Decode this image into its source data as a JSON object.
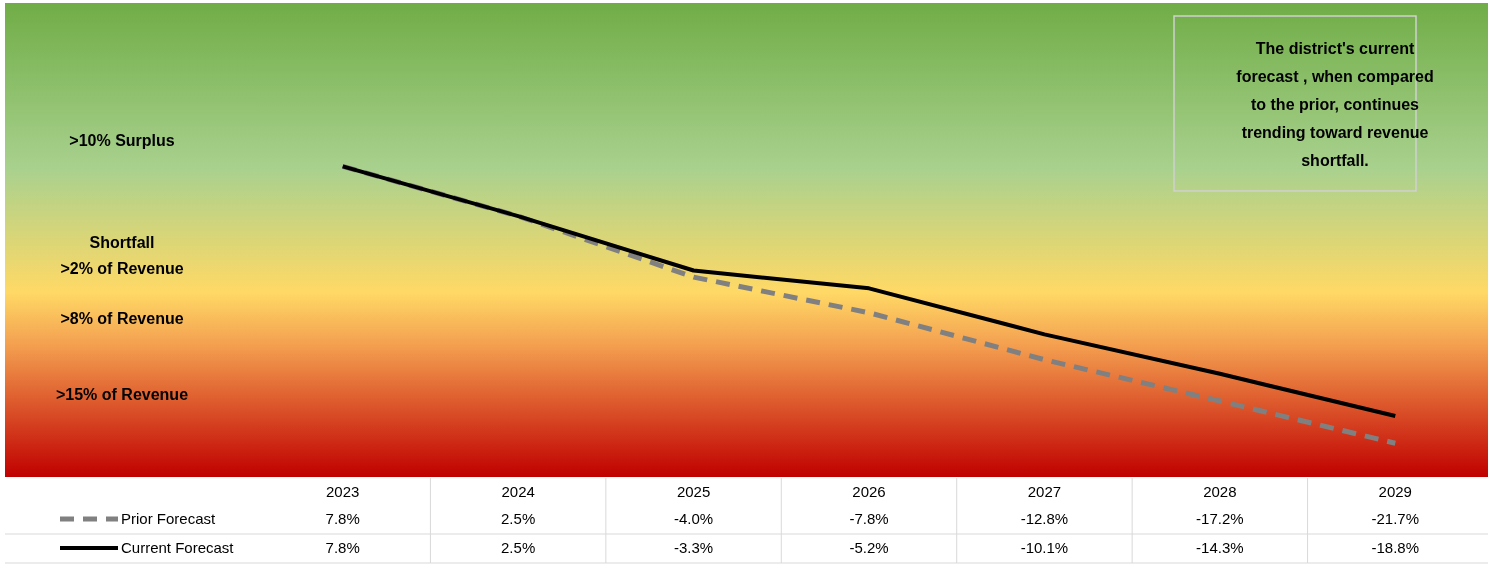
{
  "chart_data": {
    "type": "line",
    "categories": [
      "2023",
      "2024",
      "2025",
      "2026",
      "2027",
      "2028",
      "2029"
    ],
    "series": [
      {
        "name": "Prior Forecast",
        "color": "#808080",
        "line_style": "dashed",
        "values": [
          7.8,
          2.5,
          -4.0,
          -7.8,
          -12.8,
          -17.2,
          -21.7
        ],
        "value_labels": [
          "7.8%",
          "2.5%",
          "-4.0%",
          "-7.8%",
          "-12.8%",
          "-17.2%",
          "-21.7%"
        ]
      },
      {
        "name": "Current Forecast",
        "color": "#000000",
        "line_style": "solid",
        "values": [
          7.8,
          2.5,
          -3.3,
          -5.2,
          -10.1,
          -14.3,
          -18.8
        ],
        "value_labels": [
          "7.8%",
          "2.5%",
          "-3.3%",
          "-5.2%",
          "-10.1%",
          "-14.3%",
          "-18.8%"
        ]
      }
    ],
    "legend": "bottom",
    "annotations": [
      ">10% Surplus",
      "Shortfall\n>2% of Revenue",
      ">8% of Revenue",
      ">15% of Revenue",
      "The district's current forecast , when compared to the prior, continues trending toward revenue shortfall."
    ]
  }
}
